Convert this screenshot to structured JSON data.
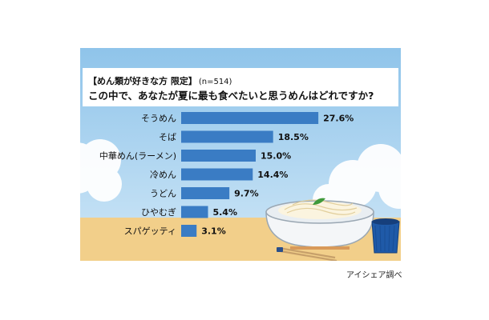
{
  "title_line1": "【めん類が好きな方 限定】",
  "sample_size": "(n=514)",
  "title_line2": "この中で、あなたが夏に最も食べたいと思うめんはどれですか?",
  "source": "アイシェア調べ",
  "colors": {
    "bar": "#3a7cc4",
    "sky_top": "#8fc4ea",
    "sky_bottom": "#c8e4f6",
    "ground": "#f2cf8a",
    "cup": "#1f5aa8"
  },
  "chart_data": {
    "type": "bar",
    "orientation": "horizontal",
    "title": "この中で、あなたが夏に最も食べたいと思うめんはどれですか?",
    "categories": [
      "そうめん",
      "そば",
      "中華めん(ラーメン)",
      "冷めん",
      "うどん",
      "ひやむぎ",
      "スパゲッティ"
    ],
    "values": [
      27.6,
      18.5,
      15.0,
      14.4,
      9.7,
      5.4,
      3.1
    ],
    "labels": [
      "27.6%",
      "18.5%",
      "15.0%",
      "14.4%",
      "9.7%",
      "5.4%",
      "3.1%"
    ],
    "unit": "%",
    "xlim": [
      0,
      30
    ],
    "grid": false,
    "legend": "none"
  }
}
